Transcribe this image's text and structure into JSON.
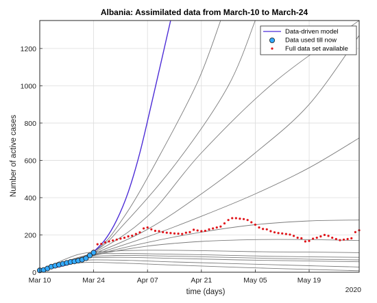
{
  "chart_data": {
    "type": "line",
    "title": "Albania: Assimilated data from March-10 to March-24",
    "xlabel": "time (days)",
    "ylabel": "Number of active cases",
    "year_label": "2020",
    "xlim": [
      "2020-03-10",
      "2020-06-01"
    ],
    "ylim": [
      0,
      1350
    ],
    "x_ticks": [
      {
        "date": "2020-03-10",
        "label": "Mar 10"
      },
      {
        "date": "2020-03-24",
        "label": "Mar 24"
      },
      {
        "date": "2020-04-07",
        "label": "Apr 07"
      },
      {
        "date": "2020-04-21",
        "label": "Apr 21"
      },
      {
        "date": "2020-05-05",
        "label": "May 05"
      },
      {
        "date": "2020-05-19",
        "label": "May 19"
      }
    ],
    "y_ticks": [
      0,
      200,
      400,
      600,
      800,
      1000,
      1200
    ],
    "grid": true,
    "legend_position": "top-right",
    "legend": [
      {
        "label": "Data-driven model",
        "kind": "line",
        "color": "#4b2bd6"
      },
      {
        "label": "Data used till now",
        "kind": "marker-circle",
        "color": "#33aaff"
      },
      {
        "label": "Full data set available",
        "kind": "marker-dot",
        "color": "#e0141a"
      }
    ],
    "model_curve": {
      "color": "#4b2bd6",
      "points": [
        [
          "2020-03-10",
          10
        ],
        [
          "2020-03-14",
          25
        ],
        [
          "2020-03-18",
          45
        ],
        [
          "2020-03-22",
          80
        ],
        [
          "2020-03-24",
          110
        ],
        [
          "2020-03-27",
          175
        ],
        [
          "2020-03-30",
          280
        ],
        [
          "2020-04-02",
          430
        ],
        [
          "2020-04-05",
          640
        ],
        [
          "2020-04-08",
          900
        ],
        [
          "2020-04-11",
          1170
        ],
        [
          "2020-04-13",
          1350
        ]
      ]
    },
    "scenario_curves": {
      "color": "#7a7a7a",
      "curves": [
        [
          [
            "2020-03-10",
            10
          ],
          [
            "2020-03-24",
            110
          ],
          [
            "2020-04-01",
            300
          ],
          [
            "2020-04-10",
            620
          ],
          [
            "2020-04-20",
            1020
          ],
          [
            "2020-04-26",
            1350
          ]
        ],
        [
          [
            "2020-03-10",
            10
          ],
          [
            "2020-03-24",
            110
          ],
          [
            "2020-04-01",
            260
          ],
          [
            "2020-04-15",
            600
          ],
          [
            "2020-04-28",
            1000
          ],
          [
            "2020-05-05",
            1350
          ]
        ],
        [
          [
            "2020-03-10",
            10
          ],
          [
            "2020-03-24",
            105
          ],
          [
            "2020-04-07",
            300
          ],
          [
            "2020-04-21",
            640
          ],
          [
            "2020-05-10",
            1020
          ],
          [
            "2020-06-01",
            1350
          ]
        ],
        [
          [
            "2020-03-10",
            10
          ],
          [
            "2020-03-24",
            100
          ],
          [
            "2020-04-07",
            230
          ],
          [
            "2020-04-21",
            420
          ],
          [
            "2020-05-05",
            640
          ],
          [
            "2020-05-19",
            900
          ],
          [
            "2020-06-01",
            1270
          ]
        ],
        [
          [
            "2020-03-10",
            10
          ],
          [
            "2020-03-24",
            95
          ],
          [
            "2020-04-07",
            190
          ],
          [
            "2020-04-21",
            300
          ],
          [
            "2020-05-05",
            420
          ],
          [
            "2020-05-19",
            560
          ],
          [
            "2020-06-01",
            720
          ]
        ],
        [
          [
            "2020-03-10",
            10
          ],
          [
            "2020-03-24",
            92
          ],
          [
            "2020-04-07",
            160
          ],
          [
            "2020-04-21",
            215
          ],
          [
            "2020-05-05",
            255
          ],
          [
            "2020-05-19",
            275
          ],
          [
            "2020-06-01",
            280
          ]
        ],
        [
          [
            "2020-03-10",
            10
          ],
          [
            "2020-03-24",
            90
          ],
          [
            "2020-04-07",
            140
          ],
          [
            "2020-04-21",
            165
          ],
          [
            "2020-05-05",
            175
          ],
          [
            "2020-05-19",
            175
          ],
          [
            "2020-06-01",
            170
          ]
        ],
        [
          [
            "2020-03-10",
            10
          ],
          [
            "2020-03-20",
            95
          ],
          [
            "2020-03-28",
            112
          ],
          [
            "2020-04-07",
            118
          ],
          [
            "2020-04-21",
            116
          ],
          [
            "2020-05-05",
            110
          ],
          [
            "2020-05-19",
            108
          ],
          [
            "2020-06-01",
            105
          ]
        ],
        [
          [
            "2020-03-10",
            10
          ],
          [
            "2020-03-22",
            90
          ],
          [
            "2020-03-30",
            100
          ],
          [
            "2020-04-10",
            98
          ],
          [
            "2020-04-25",
            92
          ],
          [
            "2020-05-10",
            85
          ],
          [
            "2020-06-01",
            80
          ]
        ],
        [
          [
            "2020-03-10",
            10
          ],
          [
            "2020-03-20",
            75
          ],
          [
            "2020-03-30",
            90
          ],
          [
            "2020-04-14",
            86
          ],
          [
            "2020-05-01",
            78
          ],
          [
            "2020-05-19",
            70
          ],
          [
            "2020-06-01",
            66
          ]
        ],
        [
          [
            "2020-03-10",
            10
          ],
          [
            "2020-03-20",
            70
          ],
          [
            "2020-03-30",
            80
          ],
          [
            "2020-04-14",
            74
          ],
          [
            "2020-05-01",
            66
          ],
          [
            "2020-05-19",
            60
          ],
          [
            "2020-06-01",
            56
          ]
        ],
        [
          [
            "2020-03-10",
            10
          ],
          [
            "2020-03-20",
            60
          ],
          [
            "2020-03-30",
            65
          ],
          [
            "2020-04-14",
            55
          ],
          [
            "2020-05-01",
            45
          ],
          [
            "2020-05-19",
            35
          ],
          [
            "2020-06-01",
            28
          ]
        ],
        [
          [
            "2020-03-10",
            10
          ],
          [
            "2020-03-20",
            50
          ],
          [
            "2020-03-30",
            50
          ],
          [
            "2020-04-14",
            38
          ],
          [
            "2020-05-01",
            26
          ],
          [
            "2020-05-19",
            15
          ],
          [
            "2020-06-01",
            8
          ]
        ]
      ]
    },
    "data_used": {
      "color": "#33aaff",
      "points": [
        [
          "2020-03-10",
          10
        ],
        [
          "2020-03-11",
          12
        ],
        [
          "2020-03-12",
          20
        ],
        [
          "2020-03-13",
          30
        ],
        [
          "2020-03-14",
          35
        ],
        [
          "2020-03-15",
          40
        ],
        [
          "2020-03-16",
          45
        ],
        [
          "2020-03-17",
          50
        ],
        [
          "2020-03-18",
          55
        ],
        [
          "2020-03-19",
          58
        ],
        [
          "2020-03-20",
          62
        ],
        [
          "2020-03-21",
          67
        ],
        [
          "2020-03-22",
          75
        ],
        [
          "2020-03-23",
          90
        ],
        [
          "2020-03-24",
          105
        ]
      ]
    },
    "full_data": {
      "color": "#e0141a",
      "points": [
        [
          "2020-03-24",
          115
        ],
        [
          "2020-03-25",
          150
        ],
        [
          "2020-03-26",
          152
        ],
        [
          "2020-03-27",
          160
        ],
        [
          "2020-03-28",
          165
        ],
        [
          "2020-03-29",
          170
        ],
        [
          "2020-03-30",
          175
        ],
        [
          "2020-03-31",
          180
        ],
        [
          "2020-04-01",
          185
        ],
        [
          "2020-04-02",
          192
        ],
        [
          "2020-04-03",
          196
        ],
        [
          "2020-04-04",
          205
        ],
        [
          "2020-04-05",
          214
        ],
        [
          "2020-04-06",
          235
        ],
        [
          "2020-04-07",
          240
        ],
        [
          "2020-04-08",
          230
        ],
        [
          "2020-04-09",
          222
        ],
        [
          "2020-04-10",
          220
        ],
        [
          "2020-04-11",
          215
        ],
        [
          "2020-04-12",
          212
        ],
        [
          "2020-04-13",
          210
        ],
        [
          "2020-04-14",
          208
        ],
        [
          "2020-04-15",
          207
        ],
        [
          "2020-04-16",
          205
        ],
        [
          "2020-04-17",
          212
        ],
        [
          "2020-04-18",
          215
        ],
        [
          "2020-04-19",
          228
        ],
        [
          "2020-04-20",
          224
        ],
        [
          "2020-04-21",
          220
        ],
        [
          "2020-04-22",
          222
        ],
        [
          "2020-04-23",
          230
        ],
        [
          "2020-04-24",
          235
        ],
        [
          "2020-04-25",
          240
        ],
        [
          "2020-04-26",
          245
        ],
        [
          "2020-04-27",
          262
        ],
        [
          "2020-04-28",
          280
        ],
        [
          "2020-04-29",
          290
        ],
        [
          "2020-04-30",
          290
        ],
        [
          "2020-05-01",
          287
        ],
        [
          "2020-05-02",
          285
        ],
        [
          "2020-05-03",
          280
        ],
        [
          "2020-05-04",
          268
        ],
        [
          "2020-05-05",
          255
        ],
        [
          "2020-05-06",
          240
        ],
        [
          "2020-05-07",
          232
        ],
        [
          "2020-05-08",
          230
        ],
        [
          "2020-05-09",
          220
        ],
        [
          "2020-05-10",
          214
        ],
        [
          "2020-05-11",
          210
        ],
        [
          "2020-05-12",
          208
        ],
        [
          "2020-05-13",
          205
        ],
        [
          "2020-05-14",
          202
        ],
        [
          "2020-05-15",
          195
        ],
        [
          "2020-05-16",
          185
        ],
        [
          "2020-05-17",
          182
        ],
        [
          "2020-05-18",
          165
        ],
        [
          "2020-05-19",
          168
        ],
        [
          "2020-05-20",
          180
        ],
        [
          "2020-05-21",
          185
        ],
        [
          "2020-05-22",
          192
        ],
        [
          "2020-05-23",
          200
        ],
        [
          "2020-05-24",
          195
        ],
        [
          "2020-05-25",
          185
        ],
        [
          "2020-05-26",
          178
        ],
        [
          "2020-05-27",
          172
        ],
        [
          "2020-05-28",
          175
        ],
        [
          "2020-05-29",
          178
        ],
        [
          "2020-05-30",
          182
        ],
        [
          "2020-05-31",
          215
        ],
        [
          "2020-06-01",
          225
        ]
      ]
    }
  }
}
